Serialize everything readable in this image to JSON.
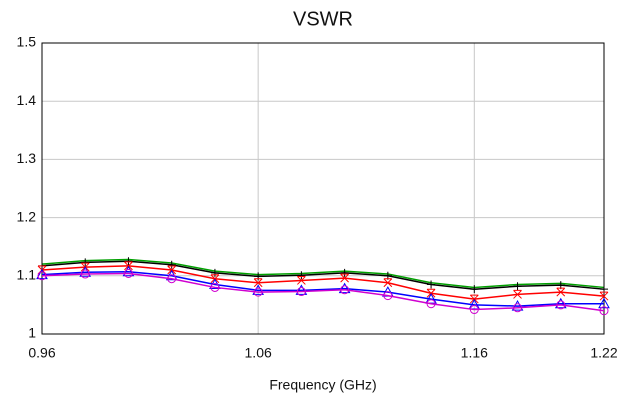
{
  "chart_data": {
    "type": "line",
    "title": "VSWR",
    "xlabel": "Frequency (GHz)",
    "x": [
      0.96,
      0.98,
      1.0,
      1.02,
      1.04,
      1.06,
      1.08,
      1.1,
      1.12,
      1.14,
      1.16,
      1.18,
      1.2,
      1.22
    ],
    "series": [
      {
        "color": "#00a000",
        "marker": "none",
        "values": [
          1.12,
          1.126,
          1.128,
          1.122,
          1.108,
          1.102,
          1.104,
          1.108,
          1.103,
          1.088,
          1.08,
          1.085,
          1.087,
          1.08
        ]
      },
      {
        "color": "#000000",
        "marker": "plus",
        "values": [
          1.117,
          1.123,
          1.125,
          1.119,
          1.105,
          1.099,
          1.101,
          1.105,
          1.1,
          1.085,
          1.077,
          1.082,
          1.084,
          1.077
        ]
      },
      {
        "color": "#ff0000",
        "marker": "cross",
        "values": [
          1.11,
          1.115,
          1.117,
          1.11,
          1.095,
          1.088,
          1.092,
          1.096,
          1.088,
          1.07,
          1.06,
          1.068,
          1.072,
          1.065
        ]
      },
      {
        "color": "#0000ff",
        "marker": "triangle",
        "values": [
          1.102,
          1.106,
          1.107,
          1.1,
          1.085,
          1.075,
          1.075,
          1.078,
          1.072,
          1.06,
          1.05,
          1.048,
          1.052,
          1.052
        ]
      },
      {
        "color": "#d000d0",
        "marker": "circle",
        "values": [
          1.1,
          1.103,
          1.104,
          1.095,
          1.08,
          1.072,
          1.073,
          1.076,
          1.066,
          1.052,
          1.042,
          1.045,
          1.05,
          1.04
        ]
      }
    ],
    "xlim": [
      0.96,
      1.22
    ],
    "xticks": [
      0.96,
      1.06,
      1.16,
      1.22
    ],
    "ylim": [
      1,
      1.5
    ],
    "yticks": [
      1,
      1.1,
      1.2,
      1.3,
      1.4,
      1.5
    ],
    "grid": true
  }
}
